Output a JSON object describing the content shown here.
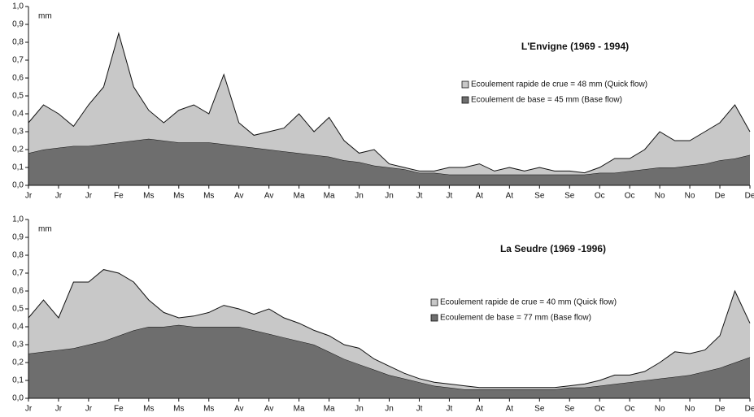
{
  "chart_data": [
    {
      "type": "stacked_area",
      "title": "L'Envigne (1969 - 1994)",
      "y_label": "mm",
      "x": [
        0,
        0.5,
        1,
        1.5,
        2,
        2.5,
        3,
        3.5,
        4,
        4.5,
        5,
        5.5,
        6,
        6.5,
        7,
        7.5,
        8,
        8.5,
        9,
        9.5,
        10,
        10.5,
        11,
        11.5,
        12,
        12.5,
        13,
        13.5,
        14,
        14.5,
        15,
        15.5,
        16,
        16.5,
        17,
        17.5,
        18,
        18.5,
        19,
        19.5,
        20,
        20.5,
        21,
        21.5,
        22,
        22.5,
        23,
        23.5,
        24
      ],
      "xlim": [
        0,
        24
      ],
      "xticks": [
        {
          "value": 0,
          "label": "Jr"
        },
        {
          "value": 1,
          "label": "Jr"
        },
        {
          "value": 2,
          "label": "Jr"
        },
        {
          "value": 3,
          "label": "Fe"
        },
        {
          "value": 4,
          "label": "Ms"
        },
        {
          "value": 5,
          "label": "Ms"
        },
        {
          "value": 6,
          "label": "Ms"
        },
        {
          "value": 7,
          "label": "Av"
        },
        {
          "value": 8,
          "label": "Av"
        },
        {
          "value": 9,
          "label": "Ma"
        },
        {
          "value": 10,
          "label": "Ma"
        },
        {
          "value": 11,
          "label": "Jn"
        },
        {
          "value": 12,
          "label": "Jn"
        },
        {
          "value": 13,
          "label": "Jt"
        },
        {
          "value": 14,
          "label": "Jt"
        },
        {
          "value": 15,
          "label": "At"
        },
        {
          "value": 16,
          "label": "At"
        },
        {
          "value": 17,
          "label": "Se"
        },
        {
          "value": 18,
          "label": "Se"
        },
        {
          "value": 19,
          "label": "Oc"
        },
        {
          "value": 20,
          "label": "Oc"
        },
        {
          "value": 21,
          "label": "No"
        },
        {
          "value": 22,
          "label": "No"
        },
        {
          "value": 23,
          "label": "De"
        },
        {
          "value": 24,
          "label": "De"
        }
      ],
      "ylim": [
        0,
        1
      ],
      "yticks": [
        {
          "value": 0,
          "label": "0,0"
        },
        {
          "value": 0.1,
          "label": "0,1"
        },
        {
          "value": 0.2,
          "label": "0,2"
        },
        {
          "value": 0.3,
          "label": "0,3"
        },
        {
          "value": 0.4,
          "label": "0,4"
        },
        {
          "value": 0.5,
          "label": "0,5"
        },
        {
          "value": 0.6,
          "label": "0,6"
        },
        {
          "value": 0.7,
          "label": "0,7"
        },
        {
          "value": 0.8,
          "label": "0,8"
        },
        {
          "value": 0.9,
          "label": "0,9"
        },
        {
          "value": 1,
          "label": "1,0"
        }
      ],
      "series": [
        {
          "name": "Ecoulement de base  = 45 mm (Base flow)",
          "color": "#6e6e6e",
          "values": [
            0.18,
            0.2,
            0.21,
            0.22,
            0.22,
            0.23,
            0.24,
            0.25,
            0.26,
            0.25,
            0.24,
            0.24,
            0.24,
            0.23,
            0.22,
            0.21,
            0.2,
            0.19,
            0.18,
            0.17,
            0.16,
            0.14,
            0.13,
            0.11,
            0.1,
            0.09,
            0.07,
            0.07,
            0.06,
            0.06,
            0.06,
            0.06,
            0.06,
            0.06,
            0.06,
            0.06,
            0.06,
            0.06,
            0.07,
            0.07,
            0.08,
            0.09,
            0.1,
            0.1,
            0.11,
            0.12,
            0.14,
            0.15,
            0.17
          ]
        },
        {
          "name": "Ecoulement rapide de crue  = 48 mm (Quick flow)",
          "color": "#c8c8c8",
          "values": [
            0.17,
            0.25,
            0.19,
            0.11,
            0.23,
            0.32,
            0.61,
            0.3,
            0.16,
            0.1,
            0.18,
            0.21,
            0.16,
            0.39,
            0.13,
            0.07,
            0.1,
            0.13,
            0.22,
            0.13,
            0.22,
            0.11,
            0.05,
            0.09,
            0.02,
            0.01,
            0.01,
            0.01,
            0.04,
            0.04,
            0.06,
            0.02,
            0.04,
            0.02,
            0.04,
            0.02,
            0.02,
            0.01,
            0.03,
            0.08,
            0.07,
            0.11,
            0.2,
            0.15,
            0.14,
            0.18,
            0.21,
            0.3,
            0.13
          ]
        }
      ]
    },
    {
      "type": "stacked_area",
      "title": "La Seudre (1969 -1996)",
      "y_label": "mm",
      "x": [
        0,
        0.5,
        1,
        1.5,
        2,
        2.5,
        3,
        3.5,
        4,
        4.5,
        5,
        5.5,
        6,
        6.5,
        7,
        7.5,
        8,
        8.5,
        9,
        9.5,
        10,
        10.5,
        11,
        11.5,
        12,
        12.5,
        13,
        13.5,
        14,
        14.5,
        15,
        15.5,
        16,
        16.5,
        17,
        17.5,
        18,
        18.5,
        19,
        19.5,
        20,
        20.5,
        21,
        21.5,
        22,
        22.5,
        23,
        23.5,
        24
      ],
      "xlim": [
        0,
        24
      ],
      "xticks": [
        {
          "value": 0,
          "label": "Jr"
        },
        {
          "value": 1,
          "label": "Jr"
        },
        {
          "value": 2,
          "label": "Jr"
        },
        {
          "value": 3,
          "label": "Fe"
        },
        {
          "value": 4,
          "label": "Ms"
        },
        {
          "value": 5,
          "label": "Ms"
        },
        {
          "value": 6,
          "label": "Ms"
        },
        {
          "value": 7,
          "label": "Av"
        },
        {
          "value": 8,
          "label": "Av"
        },
        {
          "value": 9,
          "label": "Ma"
        },
        {
          "value": 10,
          "label": "Ma"
        },
        {
          "value": 11,
          "label": "Jn"
        },
        {
          "value": 12,
          "label": "Jn"
        },
        {
          "value": 13,
          "label": "Jt"
        },
        {
          "value": 14,
          "label": "Jt"
        },
        {
          "value": 15,
          "label": "At"
        },
        {
          "value": 16,
          "label": "At"
        },
        {
          "value": 17,
          "label": "Se"
        },
        {
          "value": 18,
          "label": "Se"
        },
        {
          "value": 19,
          "label": "Oc"
        },
        {
          "value": 20,
          "label": "Oc"
        },
        {
          "value": 21,
          "label": "No"
        },
        {
          "value": 22,
          "label": "No"
        },
        {
          "value": 23,
          "label": "De"
        },
        {
          "value": 24,
          "label": "De"
        }
      ],
      "ylim": [
        0,
        1
      ],
      "yticks": [
        {
          "value": 0,
          "label": "0,0"
        },
        {
          "value": 0.1,
          "label": "0,1"
        },
        {
          "value": 0.2,
          "label": "0,2"
        },
        {
          "value": 0.3,
          "label": "0,3"
        },
        {
          "value": 0.4,
          "label": "0,4"
        },
        {
          "value": 0.5,
          "label": "0,5"
        },
        {
          "value": 0.6,
          "label": "0,6"
        },
        {
          "value": 0.7,
          "label": "0,7"
        },
        {
          "value": 0.8,
          "label": "0,8"
        },
        {
          "value": 0.9,
          "label": "0,9"
        },
        {
          "value": 1,
          "label": "1,0"
        }
      ],
      "series": [
        {
          "name": "Ecoulement de base  = 77 mm (Base flow)",
          "color": "#6e6e6e",
          "values": [
            0.25,
            0.26,
            0.27,
            0.28,
            0.3,
            0.32,
            0.35,
            0.38,
            0.4,
            0.4,
            0.41,
            0.4,
            0.4,
            0.4,
            0.4,
            0.38,
            0.36,
            0.34,
            0.32,
            0.3,
            0.26,
            0.22,
            0.19,
            0.16,
            0.13,
            0.11,
            0.09,
            0.07,
            0.06,
            0.05,
            0.05,
            0.05,
            0.05,
            0.05,
            0.05,
            0.05,
            0.06,
            0.06,
            0.07,
            0.08,
            0.09,
            0.1,
            0.11,
            0.12,
            0.13,
            0.15,
            0.17,
            0.2,
            0.23
          ]
        },
        {
          "name": "Ecoulement rapide de crue  = 40 mm (Quick flow)",
          "color": "#c8c8c8",
          "values": [
            0.2,
            0.29,
            0.18,
            0.37,
            0.35,
            0.4,
            0.35,
            0.27,
            0.15,
            0.08,
            0.04,
            0.06,
            0.08,
            0.12,
            0.1,
            0.09,
            0.14,
            0.11,
            0.1,
            0.08,
            0.09,
            0.08,
            0.09,
            0.06,
            0.05,
            0.03,
            0.02,
            0.02,
            0.02,
            0.02,
            0.01,
            0.01,
            0.01,
            0.01,
            0.01,
            0.01,
            0.01,
            0.02,
            0.03,
            0.05,
            0.04,
            0.05,
            0.09,
            0.14,
            0.12,
            0.12,
            0.18,
            0.4,
            0.19
          ]
        }
      ]
    }
  ]
}
